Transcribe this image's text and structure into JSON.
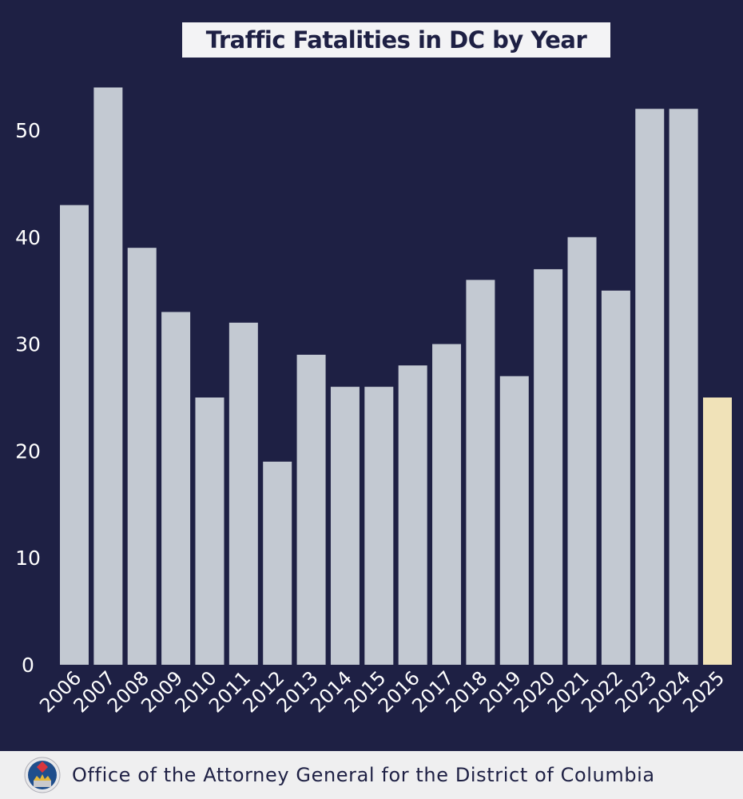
{
  "chart_data": {
    "type": "bar",
    "title": "Traffic Fatalities in DC by Year",
    "xlabel": "",
    "ylabel": "",
    "categories": [
      "2006",
      "2007",
      "2008",
      "2009",
      "2010",
      "2011",
      "2012",
      "2013",
      "2014",
      "2015",
      "2016",
      "2017",
      "2018",
      "2019",
      "2020",
      "2021",
      "2022",
      "2023",
      "2024",
      "2025"
    ],
    "values": [
      43,
      54,
      39,
      33,
      25,
      32,
      19,
      29,
      26,
      26,
      28,
      30,
      36,
      27,
      37,
      40,
      35,
      52,
      52,
      25
    ],
    "ylim": [
      0,
      55
    ],
    "yticks": [
      0,
      10,
      20,
      30,
      40,
      50
    ],
    "grid": false,
    "legend": "none",
    "colors": {
      "background": "#1e2044",
      "bar": "#c3c9d2",
      "highlight_bar": "#f0e2b8",
      "text": "#ffffff"
    },
    "highlight_category": "2025"
  },
  "footer": {
    "organization": "Office of the Attorney General for the District of Columbia",
    "logo": "OAG DC seal"
  }
}
